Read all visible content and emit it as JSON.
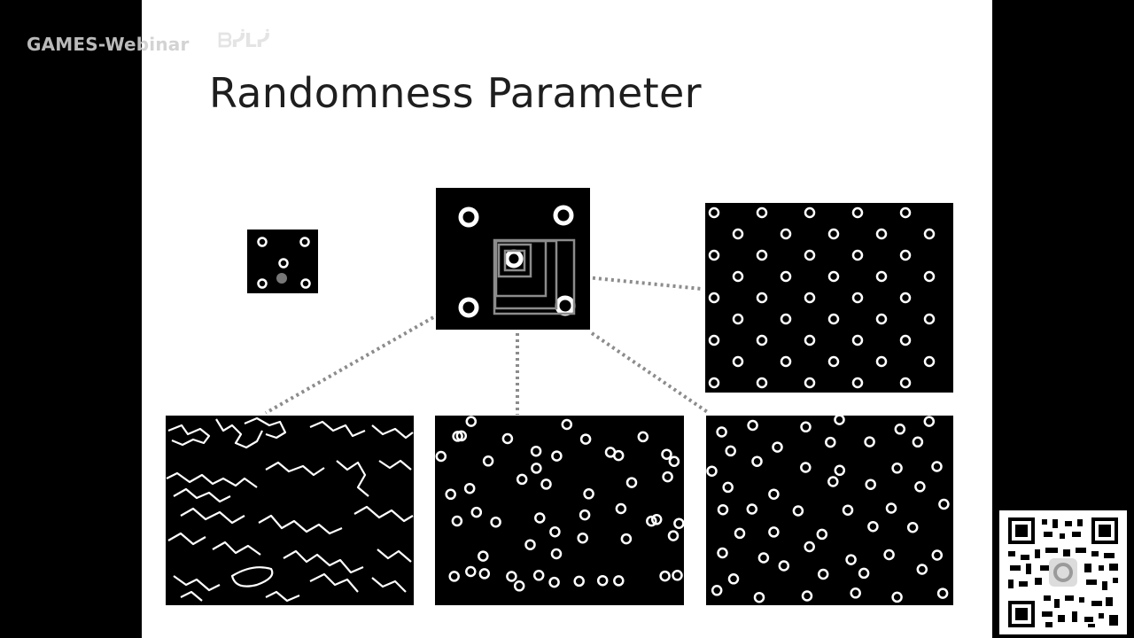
{
  "watermark": {
    "text": "GAMES-Webinar",
    "logo_icon": "bilibili-logo-icon"
  },
  "slide": {
    "title": "Randomness Parameter"
  },
  "colors": {
    "slide_bg": "#ffffff",
    "panel_bg": "#000000",
    "dot": "#ffffff",
    "guide": "#8c8c8c",
    "frame": "#000000"
  },
  "qr": {
    "icon": "qr-code-icon"
  }
}
